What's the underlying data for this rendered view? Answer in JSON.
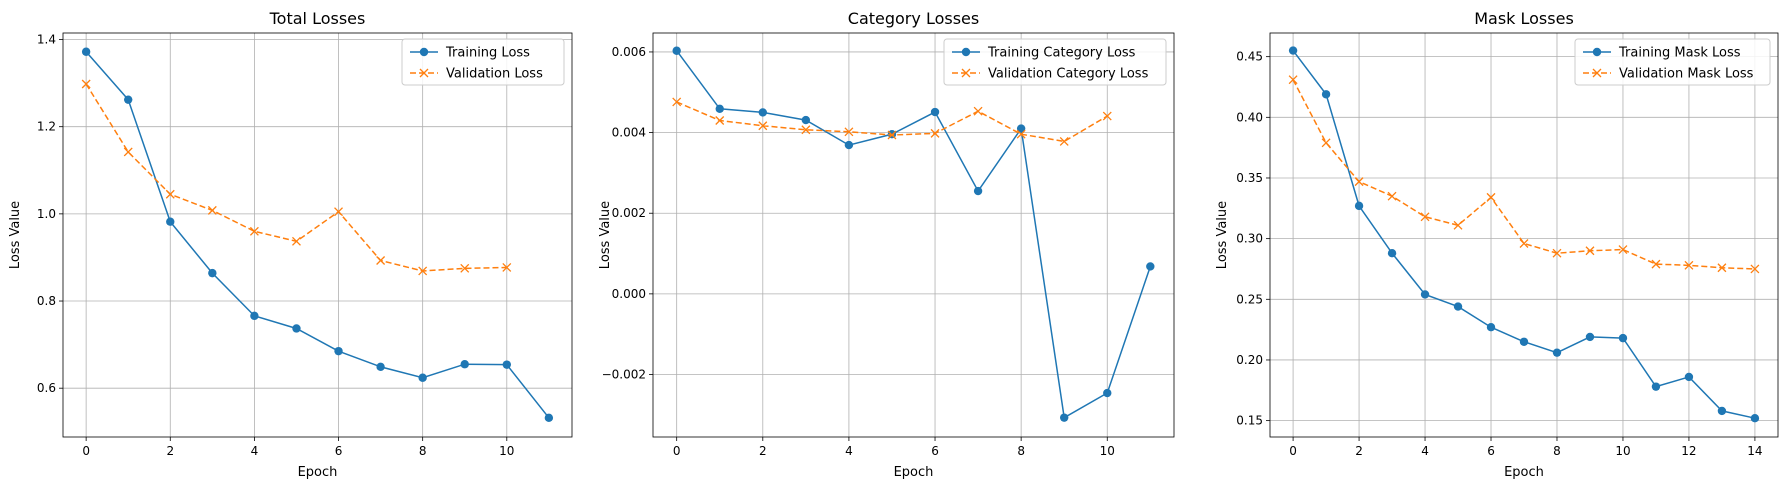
{
  "chart_data": [
    {
      "type": "line",
      "title": "Total Losses",
      "xlabel": "Epoch",
      "ylabel": "Loss Value",
      "xlim": [
        -0.55,
        11.55
      ],
      "ylim": [
        0.488,
        1.415
      ],
      "xticks": [
        0,
        2,
        4,
        6,
        8,
        10
      ],
      "yticks": [
        0.6,
        0.8,
        1.0,
        1.2,
        1.4
      ],
      "ytick_labels": [
        "0.6",
        "0.8",
        "1.0",
        "1.2",
        "1.4"
      ],
      "grid": true,
      "legend_position": "upper right",
      "series": [
        {
          "name": "Training Loss",
          "color": "#1f77b4",
          "style": "solid",
          "marker": "circle",
          "x": [
            0,
            1,
            2,
            3,
            4,
            5,
            6,
            7,
            8,
            9,
            10,
            11
          ],
          "y": [
            1.372,
            1.262,
            0.982,
            0.864,
            0.766,
            0.737,
            0.685,
            0.649,
            0.624,
            0.655,
            0.654,
            0.532
          ]
        },
        {
          "name": "Validation Loss",
          "color": "#ff7f0e",
          "style": "dashed",
          "marker": "x",
          "x": [
            0,
            1,
            2,
            3,
            4,
            5,
            6,
            7,
            8,
            9,
            10
          ],
          "y": [
            1.298,
            1.142,
            1.045,
            1.008,
            0.96,
            0.937,
            1.005,
            0.893,
            0.869,
            0.875,
            0.877
          ]
        }
      ]
    },
    {
      "type": "line",
      "title": "Category Losses",
      "xlabel": "Epoch",
      "ylabel": "Loss Value",
      "xlim": [
        -0.55,
        11.55
      ],
      "ylim": [
        -0.00355,
        0.00647
      ],
      "xticks": [
        0,
        2,
        4,
        6,
        8,
        10
      ],
      "yticks": [
        -0.002,
        0.0,
        0.002,
        0.004,
        0.006
      ],
      "ytick_labels": [
        "−0.002",
        "0.000",
        "0.002",
        "0.004",
        "0.006"
      ],
      "grid": true,
      "legend_position": "upper right",
      "series": [
        {
          "name": "Training Category Loss",
          "color": "#1f77b4",
          "style": "solid",
          "marker": "circle",
          "x": [
            0,
            1,
            2,
            3,
            4,
            5,
            6,
            7,
            8,
            9,
            10,
            11
          ],
          "y": [
            0.00603,
            0.00459,
            0.0045,
            0.00431,
            0.00369,
            0.00396,
            0.00451,
            0.00255,
            0.0041,
            -0.00307,
            -0.00246,
            0.00068
          ]
        },
        {
          "name": "Validation Category Loss",
          "color": "#ff7f0e",
          "style": "dashed",
          "marker": "x",
          "x": [
            0,
            1,
            2,
            3,
            4,
            5,
            6,
            7,
            8,
            9,
            10
          ],
          "y": [
            0.00476,
            0.0043,
            0.00417,
            0.00407,
            0.00402,
            0.00394,
            0.00398,
            0.00453,
            0.00396,
            0.00378,
            0.00441
          ]
        }
      ]
    },
    {
      "type": "line",
      "title": "Mask Losses",
      "xlabel": "Epoch",
      "ylabel": "Loss Value",
      "xlim": [
        -0.7,
        14.7
      ],
      "ylim": [
        0.1365,
        0.4695
      ],
      "xticks": [
        0,
        2,
        4,
        6,
        8,
        10,
        12,
        14
      ],
      "yticks": [
        0.15,
        0.2,
        0.25,
        0.3,
        0.35,
        0.4,
        0.45
      ],
      "ytick_labels": [
        "0.15",
        "0.20",
        "0.25",
        "0.30",
        "0.35",
        "0.40",
        "0.45"
      ],
      "grid": true,
      "legend_position": "upper right",
      "series": [
        {
          "name": "Training Mask Loss",
          "color": "#1f77b4",
          "style": "solid",
          "marker": "circle",
          "x": [
            0,
            1,
            2,
            3,
            4,
            5,
            6,
            7,
            8,
            9,
            10,
            11,
            12,
            13,
            14
          ],
          "y": [
            0.455,
            0.419,
            0.327,
            0.288,
            0.254,
            0.244,
            0.227,
            0.215,
            0.206,
            0.219,
            0.218,
            0.178,
            0.186,
            0.158,
            0.152
          ]
        },
        {
          "name": "Validation Mask Loss",
          "color": "#ff7f0e",
          "style": "dashed",
          "marker": "x",
          "x": [
            0,
            1,
            2,
            3,
            4,
            5,
            6,
            7,
            8,
            9,
            10,
            11,
            12,
            13,
            14
          ],
          "y": [
            0.431,
            0.379,
            0.347,
            0.335,
            0.318,
            0.311,
            0.334,
            0.296,
            0.288,
            0.29,
            0.291,
            0.279,
            0.278,
            0.276,
            0.275
          ]
        }
      ]
    }
  ]
}
